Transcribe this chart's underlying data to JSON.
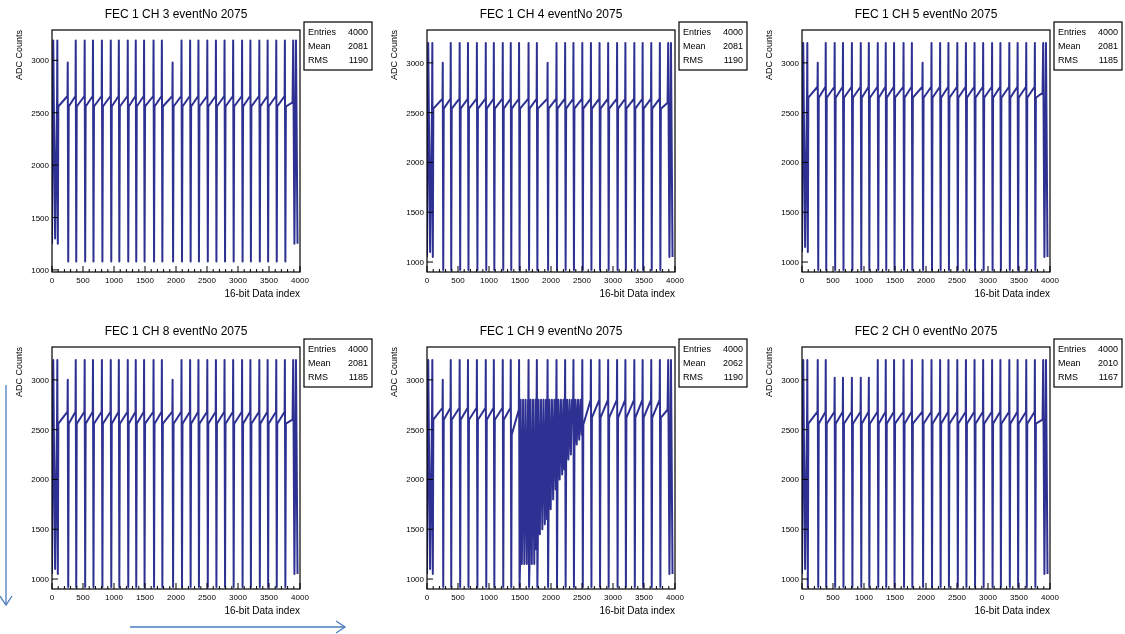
{
  "chart_data": [
    {
      "type": "line",
      "title": "FEC 1 CH 3 eventNo 2075",
      "xlabel": "16-bit Data index",
      "ylabel": "ADC Counts",
      "xlim": [
        0,
        4000
      ],
      "xticks": [
        0,
        500,
        1000,
        1500,
        2000,
        2500,
        3000,
        3500,
        4000
      ],
      "ylim": [
        980,
        3290
      ],
      "yticks": [
        1000,
        1500,
        2000,
        2500,
        3000
      ],
      "annotations": [
        "Entries",
        "4000",
        "Mean",
        "2081",
        "RMS",
        "1190"
      ],
      "x": [
        0,
        20,
        50,
        82,
        86,
        94,
        102,
        250,
        254,
        262,
        270,
        379,
        383,
        391,
        399,
        523,
        527,
        535,
        543,
        657,
        661,
        669,
        677,
        801,
        805,
        813,
        821,
        944,
        948,
        956,
        964,
        1074,
        1078,
        1086,
        1094,
        1218,
        1222,
        1230,
        1238,
        1347,
        1351,
        1359,
        1367,
        1481,
        1485,
        1493,
        1501,
        1634,
        1638,
        1646,
        1654,
        1768,
        1772,
        1780,
        1788,
        1941,
        1945,
        1953,
        1961,
        2085,
        2089,
        2097,
        2105,
        2224,
        2228,
        2236,
        2244,
        2358,
        2362,
        2370,
        2378,
        2501,
        2505,
        2513,
        2521,
        2640,
        2644,
        2652,
        2660,
        2779,
        2783,
        2791,
        2799,
        2918,
        2922,
        2930,
        2938,
        3062,
        3066,
        3074,
        3082,
        3196,
        3200,
        3208,
        3216,
        3340,
        3344,
        3352,
        3360,
        3474,
        3478,
        3486,
        3494,
        3613,
        3617,
        3625,
        3633,
        3752,
        3756,
        3764,
        3772,
        3880,
        3890,
        3910,
        3935,
        3960
      ],
      "series": [
        {
          "color": "#2e3192",
          "values": [
            1250,
            3190,
            1300,
            2660,
            3190,
            1250,
            2560,
            2660,
            2980,
            1080,
            2560,
            2660,
            3190,
            1080,
            2560,
            2660,
            3190,
            1080,
            2560,
            2660,
            3190,
            1080,
            2560,
            2660,
            3190,
            1080,
            2560,
            2660,
            3190,
            1080,
            2560,
            2660,
            3190,
            1080,
            2560,
            2660,
            3190,
            1080,
            2560,
            2660,
            3190,
            1080,
            2560,
            2660,
            3190,
            1080,
            2560,
            2660,
            3190,
            1080,
            2560,
            2660,
            3190,
            1080,
            2560,
            2660,
            2980,
            1080,
            2560,
            2660,
            3190,
            1080,
            2560,
            2660,
            3190,
            1080,
            2560,
            2660,
            3190,
            1080,
            2560,
            2660,
            3190,
            1080,
            2560,
            2660,
            3190,
            1080,
            2560,
            2660,
            3190,
            1080,
            2560,
            2660,
            3190,
            1080,
            2560,
            2660,
            3190,
            1080,
            2560,
            2660,
            3190,
            1080,
            2560,
            2660,
            3190,
            1080,
            2560,
            2660,
            3190,
            1080,
            2560,
            2660,
            3190,
            1080,
            2560,
            2660,
            3190,
            1080,
            2560,
            2600,
            3190,
            1250,
            3190,
            1250
          ]
        }
      ]
    },
    {
      "type": "line",
      "title": "FEC 1 CH 4 eventNo 2075",
      "xlabel": "16-bit Data index",
      "ylabel": "ADC Counts",
      "xlim": [
        0,
        4000
      ],
      "xticks": [
        0,
        500,
        1000,
        1500,
        2000,
        2500,
        3000,
        3500,
        4000
      ],
      "ylim": [
        900,
        3330
      ],
      "yticks": [
        1000,
        1500,
        2000,
        2500,
        3000
      ],
      "annotations": [
        "Entries",
        "4000",
        "Mean",
        "2081",
        "RMS",
        "1190"
      ],
      "x": [
        0,
        20,
        50,
        82,
        86,
        94,
        102,
        250,
        254,
        262,
        270,
        379,
        383,
        391,
        399,
        523,
        527,
        535,
        543,
        657,
        661,
        669,
        677,
        801,
        805,
        813,
        821,
        944,
        948,
        956,
        964,
        1074,
        1078,
        1086,
        1094,
        1218,
        1222,
        1230,
        1238,
        1347,
        1351,
        1359,
        1367,
        1481,
        1485,
        1493,
        1501,
        1634,
        1638,
        1646,
        1654,
        1768,
        1772,
        1780,
        1788,
        1941,
        1945,
        1953,
        1961,
        2085,
        2089,
        2097,
        2105,
        2224,
        2228,
        2236,
        2244,
        2358,
        2362,
        2370,
        2378,
        2501,
        2505,
        2513,
        2521,
        2640,
        2644,
        2652,
        2660,
        2779,
        2783,
        2791,
        2799,
        2918,
        2922,
        2930,
        2938,
        3062,
        3066,
        3074,
        3082,
        3196,
        3200,
        3208,
        3216,
        3340,
        3344,
        3352,
        3360,
        3474,
        3478,
        3486,
        3494,
        3613,
        3617,
        3625,
        3633,
        3752,
        3756,
        3764,
        3772,
        3880,
        3890,
        3910,
        3935,
        3960
      ],
      "series": [
        {
          "color": "#2e3192",
          "values": [
            1050,
            3200,
            1100,
            2640,
            3200,
            1050,
            2540,
            2640,
            3000,
            920,
            2540,
            2640,
            3200,
            920,
            2540,
            2640,
            3200,
            920,
            2540,
            2640,
            3200,
            920,
            2540,
            2640,
            3200,
            920,
            2540,
            2640,
            3200,
            920,
            2540,
            2640,
            3200,
            920,
            2540,
            2640,
            3200,
            920,
            2540,
            2640,
            3200,
            920,
            2540,
            2640,
            3200,
            920,
            2540,
            2640,
            3200,
            920,
            2540,
            2640,
            3200,
            920,
            2540,
            2640,
            3000,
            920,
            2540,
            2640,
            3200,
            920,
            2540,
            2640,
            3200,
            920,
            2540,
            2640,
            3200,
            920,
            2540,
            2640,
            3200,
            920,
            2540,
            2640,
            3200,
            920,
            2540,
            2640,
            3200,
            920,
            2540,
            2640,
            3200,
            920,
            2540,
            2640,
            3200,
            920,
            2540,
            2640,
            3200,
            920,
            2540,
            2640,
            3200,
            920,
            2540,
            2640,
            3200,
            920,
            2540,
            2640,
            3200,
            920,
            2540,
            2640,
            3200,
            920,
            2540,
            2600,
            3200,
            1050,
            3200,
            1050
          ]
        }
      ]
    },
    {
      "type": "line",
      "title": "FEC 1 CH 5 eventNo 2075",
      "xlabel": "16-bit Data index",
      "ylabel": "ADC Counts",
      "xlim": [
        0,
        4000
      ],
      "xticks": [
        0,
        500,
        1000,
        1500,
        2000,
        2500,
        3000,
        3500,
        4000
      ],
      "ylim": [
        900,
        3330
      ],
      "yticks": [
        1000,
        1500,
        2000,
        2500,
        3000
      ],
      "annotations": [
        "Entries",
        "4000",
        "Mean",
        "2081",
        "RMS",
        "1185"
      ],
      "x": [
        0,
        20,
        50,
        82,
        86,
        94,
        102,
        250,
        254,
        262,
        270,
        379,
        383,
        391,
        399,
        523,
        527,
        535,
        543,
        657,
        661,
        669,
        677,
        801,
        805,
        813,
        821,
        944,
        948,
        956,
        964,
        1074,
        1078,
        1086,
        1094,
        1218,
        1222,
        1230,
        1238,
        1347,
        1351,
        1359,
        1367,
        1481,
        1485,
        1493,
        1501,
        1634,
        1638,
        1646,
        1654,
        1768,
        1772,
        1780,
        1788,
        1941,
        1945,
        1953,
        1961,
        2085,
        2089,
        2097,
        2105,
        2224,
        2228,
        2236,
        2244,
        2358,
        2362,
        2370,
        2378,
        2501,
        2505,
        2513,
        2521,
        2640,
        2644,
        2652,
        2660,
        2779,
        2783,
        2791,
        2799,
        2918,
        2922,
        2930,
        2938,
        3062,
        3066,
        3074,
        3082,
        3196,
        3200,
        3208,
        3216,
        3340,
        3344,
        3352,
        3360,
        3474,
        3478,
        3486,
        3494,
        3613,
        3617,
        3625,
        3633,
        3752,
        3756,
        3764,
        3772,
        3880,
        3890,
        3910,
        3935,
        3960
      ],
      "series": [
        {
          "color": "#2e3192",
          "values": [
            1100,
            3200,
            1150,
            2760,
            3200,
            1100,
            2650,
            2760,
            3000,
            920,
            2650,
            2760,
            3200,
            920,
            2650,
            2760,
            3200,
            920,
            2650,
            2760,
            3200,
            920,
            2650,
            2760,
            3200,
            920,
            2650,
            2760,
            3200,
            920,
            2650,
            2760,
            3200,
            920,
            2650,
            2760,
            3200,
            920,
            2650,
            2760,
            3200,
            920,
            2650,
            2760,
            3200,
            920,
            2650,
            2760,
            3200,
            920,
            2650,
            2760,
            3200,
            920,
            2650,
            2760,
            3000,
            920,
            2650,
            2760,
            3200,
            920,
            2650,
            2760,
            3200,
            920,
            2650,
            2760,
            3200,
            920,
            2650,
            2760,
            3200,
            920,
            2650,
            2760,
            3200,
            920,
            2650,
            2760,
            3200,
            920,
            2650,
            2760,
            3200,
            920,
            2650,
            2760,
            3200,
            920,
            2650,
            2760,
            3200,
            920,
            2650,
            2760,
            3200,
            920,
            2650,
            2760,
            3200,
            920,
            2650,
            2760,
            3200,
            920,
            2650,
            2760,
            3200,
            920,
            2650,
            2700,
            3200,
            1050,
            3200,
            1050
          ]
        }
      ]
    },
    {
      "type": "line",
      "title": "FEC 1 CH 8 eventNo 2075",
      "xlabel": "16-bit Data index",
      "ylabel": "ADC Counts",
      "xlim": [
        0,
        4000
      ],
      "xticks": [
        0,
        500,
        1000,
        1500,
        2000,
        2500,
        3000,
        3500,
        4000
      ],
      "ylim": [
        900,
        3330
      ],
      "yticks": [
        1000,
        1500,
        2000,
        2500,
        3000
      ],
      "annotations": [
        "Entries",
        "4000",
        "Mean",
        "2081",
        "RMS",
        "1185"
      ],
      "x": [
        0,
        20,
        50,
        82,
        86,
        94,
        102,
        250,
        254,
        262,
        270,
        379,
        383,
        391,
        399,
        523,
        527,
        535,
        543,
        657,
        661,
        669,
        677,
        801,
        805,
        813,
        821,
        944,
        948,
        956,
        964,
        1074,
        1078,
        1086,
        1094,
        1218,
        1222,
        1230,
        1238,
        1347,
        1351,
        1359,
        1367,
        1481,
        1485,
        1493,
        1501,
        1634,
        1638,
        1646,
        1654,
        1768,
        1772,
        1780,
        1788,
        1941,
        1945,
        1953,
        1961,
        2085,
        2089,
        2097,
        2105,
        2224,
        2228,
        2236,
        2244,
        2358,
        2362,
        2370,
        2378,
        2501,
        2505,
        2513,
        2521,
        2640,
        2644,
        2652,
        2660,
        2779,
        2783,
        2791,
        2799,
        2918,
        2922,
        2930,
        2938,
        3062,
        3066,
        3074,
        3082,
        3196,
        3200,
        3208,
        3216,
        3340,
        3344,
        3352,
        3360,
        3474,
        3478,
        3486,
        3494,
        3613,
        3617,
        3625,
        3633,
        3752,
        3756,
        3764,
        3772,
        3880,
        3890,
        3910,
        3935,
        3960
      ],
      "series": [
        {
          "color": "#2e3192",
          "values": [
            1050,
            3200,
            1100,
            2680,
            3200,
            1050,
            2560,
            2680,
            3000,
            920,
            2560,
            2680,
            3200,
            920,
            2560,
            2680,
            3200,
            920,
            2560,
            2680,
            3200,
            920,
            2560,
            2680,
            3200,
            920,
            2560,
            2680,
            3200,
            920,
            2560,
            2680,
            3200,
            920,
            2560,
            2680,
            3200,
            920,
            2560,
            2680,
            3200,
            920,
            2560,
            2680,
            3200,
            920,
            2560,
            2680,
            3200,
            920,
            2560,
            2680,
            3200,
            920,
            2560,
            2680,
            3000,
            920,
            2560,
            2680,
            3200,
            920,
            2560,
            2680,
            3200,
            920,
            2560,
            2680,
            3200,
            920,
            2560,
            2680,
            3200,
            920,
            2560,
            2680,
            3200,
            920,
            2560,
            2680,
            3200,
            920,
            2560,
            2680,
            3200,
            920,
            2560,
            2680,
            3200,
            920,
            2560,
            2680,
            3200,
            920,
            2560,
            2680,
            3200,
            920,
            2560,
            2680,
            3200,
            920,
            2560,
            2680,
            3200,
            920,
            2560,
            2680,
            3200,
            920,
            2560,
            2600,
            3200,
            1050,
            3200,
            1050
          ]
        }
      ]
    },
    {
      "type": "line",
      "title": "FEC 1 CH 9 eventNo 2075",
      "xlabel": "16-bit Data index",
      "ylabel": "ADC Counts",
      "xlim": [
        0,
        4000
      ],
      "xticks": [
        0,
        500,
        1000,
        1500,
        2000,
        2500,
        3000,
        3500,
        4000
      ],
      "ylim": [
        900,
        3330
      ],
      "yticks": [
        1000,
        1500,
        2000,
        2500,
        3000
      ],
      "annotations": [
        "Entries",
        "4000",
        "Mean",
        "2062",
        "RMS",
        "1190"
      ],
      "x": [
        0,
        20,
        50,
        82,
        86,
        94,
        102,
        250,
        254,
        262,
        270,
        379,
        383,
        391,
        399,
        523,
        527,
        535,
        543,
        657,
        661,
        669,
        677,
        801,
        805,
        813,
        821,
        944,
        948,
        956,
        964,
        1074,
        1078,
        1086,
        1094,
        1218,
        1222,
        1230,
        1238,
        1347,
        1351,
        1359,
        1367,
        1481,
        1485,
        1493,
        1501,
        1510,
        1530,
        1550,
        1570,
        1590,
        1610,
        1630,
        1634,
        1638,
        1646,
        1654,
        1670,
        1690,
        1710,
        1730,
        1750,
        1762,
        1768,
        1772,
        1780,
        1788,
        1800,
        1820,
        1840,
        1860,
        1880,
        1900,
        1920,
        1935,
        1941,
        1945,
        1953,
        1961,
        1975,
        1995,
        2015,
        2035,
        2055,
        2075,
        2085,
        2089,
        2097,
        2105,
        2120,
        2140,
        2160,
        2180,
        2200,
        2215,
        2224,
        2228,
        2236,
        2244,
        2260,
        2280,
        2300,
        2320,
        2340,
        2358,
        2362,
        2370,
        2378,
        2395,
        2415,
        2435,
        2455,
        2475,
        2495,
        2501,
        2505,
        2513,
        2521,
        2640,
        2644,
        2652,
        2660,
        2779,
        2783,
        2791,
        2799,
        2918,
        2922,
        2930,
        2938,
        3062,
        3066,
        3074,
        3082,
        3196,
        3200,
        3208,
        3216,
        3340,
        3344,
        3352,
        3360,
        3474,
        3478,
        3486,
        3494,
        3613,
        3617,
        3625,
        3633,
        3752,
        3756,
        3764,
        3772,
        3880,
        3890,
        3910,
        3935,
        3960
      ],
      "series": [
        {
          "color": "#2e3192",
          "values": [
            1050,
            3200,
            1100,
            2720,
            3200,
            1050,
            2600,
            2720,
            3000,
            920,
            2600,
            2720,
            3200,
            920,
            2600,
            2720,
            3200,
            920,
            2600,
            2720,
            3200,
            920,
            2600,
            2720,
            3200,
            920,
            2600,
            2720,
            3200,
            920,
            2600,
            2720,
            3200,
            920,
            2600,
            2720,
            3200,
            920,
            2600,
            2720,
            3200,
            920,
            2450,
            2700,
            3200,
            920,
            1150,
            2800,
            1150,
            2800,
            1150,
            2800,
            1150,
            2800,
            2780,
            3200,
            920,
            1150,
            2800,
            1150,
            2800,
            1150,
            2800,
            1300,
            2800,
            3200,
            920,
            1400,
            2800,
            1450,
            2800,
            1500,
            2800,
            1550,
            2800,
            1600,
            2800,
            3200,
            920,
            1650,
            2800,
            1700,
            2800,
            1800,
            2800,
            1900,
            2800,
            3200,
            920,
            1950,
            2800,
            2000,
            2800,
            2050,
            2800,
            2100,
            2800,
            3200,
            920,
            2150,
            2800,
            2200,
            2800,
            2250,
            2800,
            2800,
            3200,
            920,
            2300,
            2800,
            2350,
            2800,
            2400,
            2800,
            2450,
            2800,
            3200,
            920,
            2550,
            2800,
            3200,
            920,
            2620,
            2800,
            3200,
            920,
            2620,
            2800,
            3200,
            920,
            2620,
            2800,
            3200,
            920,
            2620,
            2800,
            3200,
            920,
            2620,
            2800,
            3200,
            920,
            2620,
            2800,
            3200,
            920,
            2620,
            2800,
            3200,
            920,
            2620,
            2800,
            3200,
            920,
            2620,
            2700,
            3200,
            1050,
            3200,
            1050
          ]
        }
      ]
    },
    {
      "type": "line",
      "title": "FEC 2 CH 0 eventNo 2075",
      "xlabel": "16-bit Data index",
      "ylabel": "ADC Counts",
      "xlim": [
        0,
        4000
      ],
      "xticks": [
        0,
        500,
        1000,
        1500,
        2000,
        2500,
        3000,
        3500,
        4000
      ],
      "ylim": [
        900,
        3330
      ],
      "yticks": [
        1000,
        1500,
        2000,
        2500,
        3000
      ],
      "annotations": [
        "Entries",
        "4000",
        "Mean",
        "2010",
        "RMS",
        "1167"
      ],
      "x": [
        0,
        20,
        50,
        82,
        86,
        94,
        102,
        250,
        254,
        262,
        270,
        379,
        383,
        391,
        399,
        523,
        527,
        535,
        543,
        657,
        661,
        669,
        677,
        801,
        805,
        813,
        821,
        944,
        948,
        956,
        964,
        1074,
        1078,
        1086,
        1094,
        1218,
        1222,
        1230,
        1238,
        1347,
        1351,
        1359,
        1367,
        1481,
        1485,
        1493,
        1501,
        1634,
        1638,
        1646,
        1654,
        1768,
        1772,
        1780,
        1788,
        1941,
        1945,
        1953,
        1961,
        2085,
        2089,
        2097,
        2105,
        2224,
        2228,
        2236,
        2244,
        2358,
        2362,
        2370,
        2378,
        2501,
        2505,
        2513,
        2521,
        2640,
        2644,
        2652,
        2660,
        2779,
        2783,
        2791,
        2799,
        2918,
        2922,
        2930,
        2938,
        3062,
        3066,
        3074,
        3082,
        3196,
        3200,
        3208,
        3216,
        3340,
        3344,
        3352,
        3360,
        3474,
        3478,
        3486,
        3494,
        3613,
        3617,
        3625,
        3633,
        3752,
        3756,
        3764,
        3772,
        3880,
        3890,
        3910,
        3935,
        3960
      ],
      "series": [
        {
          "color": "#2e3192",
          "values": [
            1050,
            3200,
            1100,
            2680,
            3200,
            920,
            2560,
            2680,
            3200,
            920,
            2560,
            2680,
            3200,
            920,
            2560,
            2680,
            3020,
            920,
            2560,
            2680,
            3020,
            920,
            2560,
            2680,
            3020,
            920,
            2560,
            2680,
            3020,
            920,
            2560,
            2680,
            3020,
            920,
            2560,
            2680,
            3200,
            920,
            2560,
            2680,
            3200,
            920,
            2560,
            2680,
            3200,
            920,
            2560,
            2680,
            3200,
            920,
            2560,
            2680,
            3200,
            920,
            2560,
            2680,
            3200,
            920,
            2560,
            2680,
            3200,
            920,
            2560,
            2680,
            3200,
            920,
            2560,
            2680,
            3200,
            920,
            2560,
            2680,
            3200,
            920,
            2560,
            2680,
            3200,
            920,
            2560,
            2680,
            3200,
            920,
            2560,
            2680,
            3200,
            920,
            2560,
            2680,
            3200,
            920,
            2560,
            2680,
            3200,
            920,
            2560,
            2680,
            3200,
            920,
            2560,
            2680,
            3200,
            920,
            2560,
            2680,
            3200,
            920,
            2560,
            2680,
            3200,
            920,
            2560,
            2600,
            3200,
            1050,
            3200,
            1050
          ]
        }
      ]
    }
  ]
}
